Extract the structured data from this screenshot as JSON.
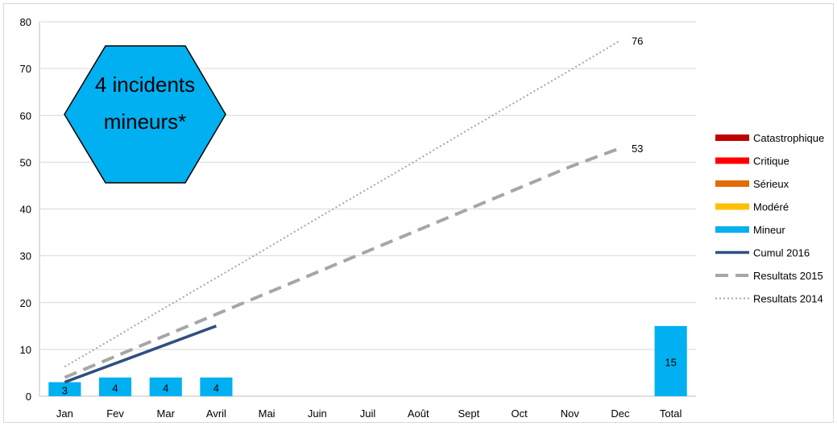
{
  "chart_data": {
    "type": "bar",
    "categories": [
      "Jan",
      "Fev",
      "Mar",
      "Avril",
      "Mai",
      "Juin",
      "Juil",
      "Août",
      "Sept",
      "Oct",
      "Nov",
      "Dec",
      "Total"
    ],
    "ylim": [
      0,
      80
    ],
    "yticks": [
      0,
      10,
      20,
      30,
      40,
      50,
      60,
      70,
      80
    ],
    "grid": true,
    "legend_position": "right",
    "bar_series": [
      {
        "name": "Catastrophique",
        "color": "#c00000",
        "values": []
      },
      {
        "name": "Critique",
        "color": "#ff0000",
        "values": []
      },
      {
        "name": "Sérieux",
        "color": "#e36c09",
        "values": []
      },
      {
        "name": "Modéré",
        "color": "#ffc000",
        "values": []
      },
      {
        "name": "Mineur",
        "color": "#00b0f0",
        "values": [
          3,
          4,
          4,
          4,
          null,
          null,
          null,
          null,
          null,
          null,
          null,
          null,
          15
        ]
      }
    ],
    "line_series": [
      {
        "name": "Cumul 2016",
        "color": "#2f4f7f",
        "style": "solid",
        "values": [
          3,
          7,
          11,
          15
        ]
      },
      {
        "name": "Resultats 2015",
        "color": "#a6a6a6",
        "style": "dashed",
        "values": [
          4,
          8.5,
          13,
          17.5,
          22,
          26.5,
          31,
          35.5,
          40,
          44.5,
          49,
          53
        ]
      },
      {
        "name": "Resultats 2014",
        "color": "#a6a6a6",
        "style": "dotted",
        "values": [
          6.3,
          12.6,
          19,
          25.3,
          31.6,
          38,
          44.3,
          50.6,
          57,
          63.3,
          69.6,
          76
        ]
      }
    ],
    "end_labels": [
      "76",
      "53"
    ],
    "callout": {
      "line1": "4 incidents",
      "line2": "mineurs*",
      "color": "#00b0f0"
    }
  }
}
